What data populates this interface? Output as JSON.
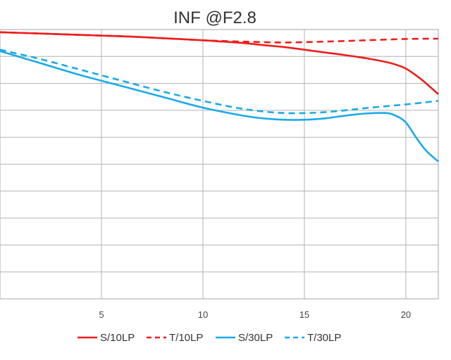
{
  "chart_data": {
    "type": "line",
    "title": "INF @F2.8",
    "xlabel": "",
    "ylabel": "",
    "x_ticks": [
      "5",
      "10",
      "15",
      "20"
    ],
    "xlim": [
      0,
      21.6
    ],
    "ylim": [
      0,
      1.0
    ],
    "grid": true,
    "legend_position": "bottom",
    "series": [
      {
        "name": "S/10LP",
        "color": "#ee1c1c",
        "style": "solid",
        "x": [
          0,
          2,
          4,
          6,
          8,
          10,
          11,
          12,
          13,
          14,
          15,
          16,
          17,
          18,
          19,
          19.5,
          20,
          20.5,
          21,
          21.6
        ],
        "y": [
          0.99,
          0.985,
          0.98,
          0.975,
          0.968,
          0.96,
          0.955,
          0.95,
          0.942,
          0.935,
          0.925,
          0.915,
          0.905,
          0.894,
          0.88,
          0.87,
          0.855,
          0.83,
          0.8,
          0.76
        ]
      },
      {
        "name": "T/10LP",
        "color": "#ee1c1c",
        "style": "dashed",
        "x": [
          0,
          2,
          4,
          6,
          8,
          10,
          12,
          14,
          16,
          18,
          20,
          21.6
        ],
        "y": [
          0.99,
          0.985,
          0.98,
          0.975,
          0.968,
          0.96,
          0.955,
          0.952,
          0.955,
          0.96,
          0.965,
          0.966
        ]
      },
      {
        "name": "S/30LP",
        "color": "#1aaae8",
        "style": "solid",
        "x": [
          0,
          2,
          4,
          6,
          8,
          10,
          12,
          13,
          14,
          15,
          16,
          17,
          18,
          19,
          19.5,
          20,
          20.5,
          21,
          21.6
        ],
        "y": [
          0.92,
          0.875,
          0.83,
          0.79,
          0.75,
          0.71,
          0.68,
          0.67,
          0.665,
          0.665,
          0.67,
          0.68,
          0.688,
          0.69,
          0.68,
          0.655,
          0.6,
          0.55,
          0.51
        ]
      },
      {
        "name": "T/30LP",
        "color": "#1aaae8",
        "style": "dashed",
        "x": [
          0,
          2,
          4,
          6,
          8,
          10,
          12,
          14,
          16,
          18,
          20,
          21.6
        ],
        "y": [
          0.925,
          0.89,
          0.85,
          0.81,
          0.77,
          0.735,
          0.705,
          0.69,
          0.693,
          0.708,
          0.722,
          0.735
        ]
      }
    ]
  }
}
